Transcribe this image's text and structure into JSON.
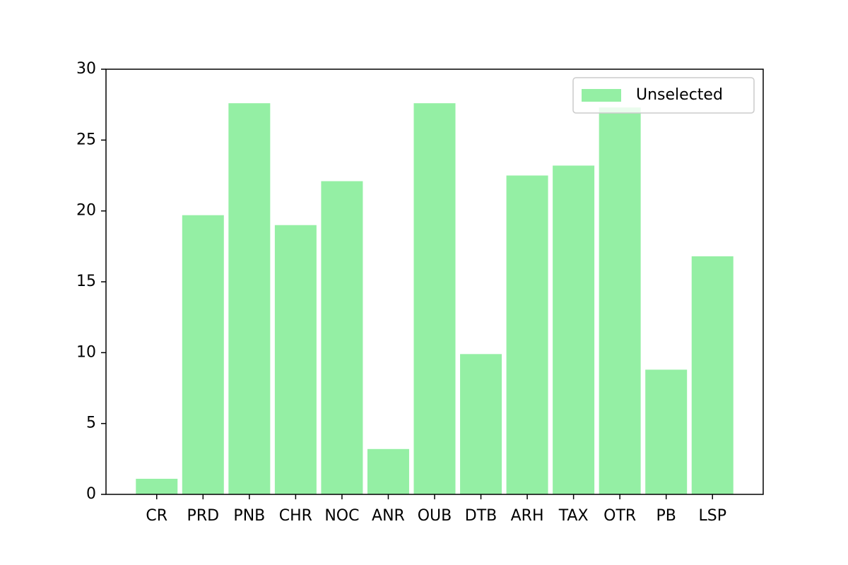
{
  "chart_data": {
    "type": "bar",
    "categories": [
      "CR",
      "PRD",
      "PNB",
      "CHR",
      "NOC",
      "ANR",
      "OUB",
      "DTB",
      "ARH",
      "TAX",
      "OTR",
      "PB",
      "LSP"
    ],
    "series": [
      {
        "name": "Unselected",
        "color": "#94efa4",
        "values": [
          1.1,
          19.7,
          27.6,
          19.0,
          22.1,
          3.2,
          27.6,
          9.9,
          22.5,
          23.2,
          27.3,
          8.8,
          16.8
        ]
      }
    ],
    "ylim": [
      0,
      30
    ],
    "yticks": [
      0,
      5,
      10,
      15,
      20,
      25,
      30
    ],
    "legend": "upper right",
    "grid": false
  }
}
